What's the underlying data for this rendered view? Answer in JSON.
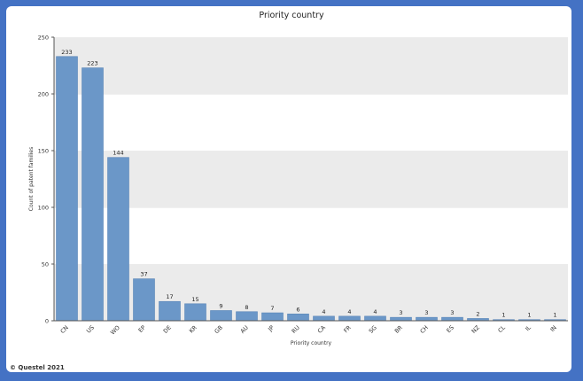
{
  "footer": {
    "copyright": "© Questel 2021"
  },
  "chart_data": {
    "type": "bar",
    "title": "Priority country",
    "xlabel": "Priority country",
    "ylabel": "Count of patent families",
    "categories": [
      "CN",
      "US",
      "WO",
      "EP",
      "DE",
      "KR",
      "GB",
      "AU",
      "JP",
      "RU",
      "CA",
      "FR",
      "SG",
      "BR",
      "CH",
      "ES",
      "NZ",
      "CL",
      "IL",
      "IN"
    ],
    "values": [
      233,
      223,
      144,
      37,
      17,
      15,
      9,
      8,
      7,
      6,
      4,
      4,
      4,
      3,
      3,
      3,
      2,
      1,
      1,
      1
    ],
    "ylim": [
      0,
      250
    ],
    "yticks": [
      0,
      50,
      100,
      150,
      200,
      250
    ],
    "grid": "alternating horizontal bands",
    "legend": "none",
    "colors": {
      "bar": "#6b97c8",
      "bar_edge": "#5a86b8",
      "band": "#ebebeb",
      "frame": "#4472c4"
    }
  }
}
